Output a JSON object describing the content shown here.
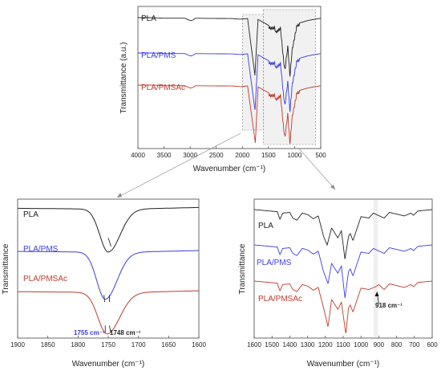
{
  "figure": {
    "colors": {
      "PLA": "#222222",
      "PLA/PMS": "#3b3be8",
      "PLA/PMSAc": "#c0392b"
    },
    "annotations": {
      "a1755": "1755 cm⁻¹",
      "a1748": "1748 cm⁻¹",
      "a918": "918 cm⁻¹"
    }
  },
  "chart_data": [
    {
      "type": "line",
      "xlabel": "Wavenumber (cm⁻¹)",
      "ylabel": "Transmittance (a.u.)",
      "xlim": [
        4000,
        500
      ],
      "x_reversed": true,
      "xticks": [
        4000,
        3500,
        3000,
        2500,
        2000,
        1500,
        1000,
        500
      ],
      "series": [
        {
          "name": "PLA",
          "offset": 0.72,
          "points": [
            [
              4000,
              1
            ],
            [
              3700,
              1
            ],
            [
              3600,
              0.995
            ],
            [
              3500,
              0.99
            ],
            [
              3100,
              0.99
            ],
            [
              2997,
              0.95
            ],
            [
              2945,
              0.96
            ],
            [
              2900,
              0.99
            ],
            [
              2200,
              0.985
            ],
            [
              2050,
              0.975
            ],
            [
              1900,
              0.985
            ],
            [
              1760,
              0.03
            ],
            [
              1700,
              0.97
            ],
            [
              1455,
              0.85
            ],
            [
              1380,
              0.86
            ],
            [
              1360,
              0.78
            ],
            [
              1270,
              0.85
            ],
            [
              1210,
              0.3
            ],
            [
              1185,
              0.15
            ],
            [
              1130,
              0.55
            ],
            [
              1090,
              0.05
            ],
            [
              1045,
              0.5
            ],
            [
              955,
              0.9
            ],
            [
              870,
              0.92
            ],
            [
              755,
              0.95
            ],
            [
              700,
              0.96
            ],
            [
              500,
              0.99
            ]
          ]
        },
        {
          "name": "PLA/PMS",
          "offset": 0.36,
          "points": [
            [
              4000,
              1
            ],
            [
              3700,
              1
            ],
            [
              3600,
              0.995
            ],
            [
              3500,
              0.99
            ],
            [
              3100,
              0.99
            ],
            [
              2997,
              0.95
            ],
            [
              2945,
              0.96
            ],
            [
              2900,
              0.99
            ],
            [
              2200,
              0.985
            ],
            [
              2050,
              0.975
            ],
            [
              1900,
              0.985
            ],
            [
              1758,
              0.03
            ],
            [
              1700,
              0.97
            ],
            [
              1455,
              0.85
            ],
            [
              1380,
              0.86
            ],
            [
              1360,
              0.78
            ],
            [
              1270,
              0.85
            ],
            [
              1210,
              0.3
            ],
            [
              1185,
              0.15
            ],
            [
              1130,
              0.55
            ],
            [
              1090,
              0.05
            ],
            [
              1045,
              0.5
            ],
            [
              955,
              0.9
            ],
            [
              870,
              0.92
            ],
            [
              755,
              0.95
            ],
            [
              700,
              0.96
            ],
            [
              500,
              0.99
            ]
          ]
        },
        {
          "name": "PLA/PMSAc",
          "offset": 0.0,
          "points": [
            [
              4000,
              1
            ],
            [
              3700,
              1
            ],
            [
              3600,
              0.995
            ],
            [
              3500,
              0.99
            ],
            [
              3100,
              0.99
            ],
            [
              2997,
              0.95
            ],
            [
              2945,
              0.96
            ],
            [
              2900,
              0.99
            ],
            [
              2200,
              0.985
            ],
            [
              2050,
              0.975
            ],
            [
              1900,
              0.985
            ],
            [
              1752,
              0.03
            ],
            [
              1700,
              0.97
            ],
            [
              1455,
              0.85
            ],
            [
              1380,
              0.86
            ],
            [
              1360,
              0.78
            ],
            [
              1270,
              0.85
            ],
            [
              1210,
              0.3
            ],
            [
              1185,
              0.15
            ],
            [
              1130,
              0.55
            ],
            [
              1090,
              0.05
            ],
            [
              1045,
              0.5
            ],
            [
              955,
              0.9
            ],
            [
              870,
              0.92
            ],
            [
              755,
              0.95
            ],
            [
              700,
              0.96
            ],
            [
              500,
              0.99
            ]
          ]
        }
      ],
      "highlight_regions": [
        [
          2000,
          1600
        ],
        [
          1600,
          600
        ]
      ]
    },
    {
      "type": "line",
      "xlabel": "Wavenumber (cm⁻¹)",
      "ylabel": "Transmittance",
      "xlim": [
        1900,
        1600
      ],
      "x_reversed": true,
      "xticks": [
        1900,
        1850,
        1800,
        1750,
        1700,
        1650,
        1600
      ],
      "series": [
        {
          "name": "PLA",
          "center": 1750,
          "width": 14,
          "base": 0.93,
          "depth": 0.31
        },
        {
          "name": "PLA/PMS",
          "center": 1755,
          "width": 14,
          "base": 0.62,
          "depth": 0.34
        },
        {
          "name": "PLA/PMSAc",
          "center": 1752,
          "width": 15,
          "base": 0.33,
          "depth": 0.3
        }
      ],
      "annotations": [
        {
          "text": "1755 cm⁻¹",
          "x": 1755
        },
        {
          "text": "1748 cm⁻¹",
          "x": 1748
        }
      ]
    },
    {
      "type": "line",
      "xlabel": "Wavenumber (cm⁻¹)",
      "ylabel": "Transmittance",
      "xlim": [
        1600,
        600
      ],
      "x_reversed": true,
      "xticks": [
        1600,
        1500,
        1400,
        1300,
        1200,
        1100,
        1000,
        900,
        800,
        700,
        600
      ],
      "series": [
        {
          "name": "PLA",
          "offset": 0.66,
          "points": [
            [
              1600,
              1
            ],
            [
              1470,
              0.97
            ],
            [
              1455,
              0.86
            ],
            [
              1440,
              0.95
            ],
            [
              1400,
              0.96
            ],
            [
              1383,
              0.88
            ],
            [
              1360,
              0.85
            ],
            [
              1330,
              0.95
            ],
            [
              1300,
              0.93
            ],
            [
              1268,
              0.87
            ],
            [
              1240,
              0.91
            ],
            [
              1210,
              0.62
            ],
            [
              1190,
              0.5
            ],
            [
              1165,
              0.74
            ],
            [
              1130,
              0.6
            ],
            [
              1110,
              0.7
            ],
            [
              1090,
              0.3
            ],
            [
              1070,
              0.62
            ],
            [
              1060,
              0.66
            ],
            [
              1045,
              0.56
            ],
            [
              1000,
              0.9
            ],
            [
              956,
              0.88
            ],
            [
              930,
              0.95
            ],
            [
              870,
              0.88
            ],
            [
              840,
              0.96
            ],
            [
              756,
              0.91
            ],
            [
              720,
              0.95
            ],
            [
              705,
              0.92
            ],
            [
              680,
              0.98
            ],
            [
              600,
              1
            ]
          ]
        },
        {
          "name": "PLA/PMS",
          "offset": 0.35,
          "points": [
            [
              1600,
              1
            ],
            [
              1470,
              0.97
            ],
            [
              1455,
              0.86
            ],
            [
              1440,
              0.95
            ],
            [
              1400,
              0.96
            ],
            [
              1383,
              0.88
            ],
            [
              1360,
              0.85
            ],
            [
              1330,
              0.95
            ],
            [
              1300,
              0.93
            ],
            [
              1268,
              0.87
            ],
            [
              1240,
              0.91
            ],
            [
              1210,
              0.62
            ],
            [
              1185,
              0.45
            ],
            [
              1165,
              0.74
            ],
            [
              1130,
              0.6
            ],
            [
              1110,
              0.7
            ],
            [
              1090,
              0.25
            ],
            [
              1070,
              0.62
            ],
            [
              1060,
              0.66
            ],
            [
              1045,
              0.56
            ],
            [
              1000,
              0.9
            ],
            [
              956,
              0.88
            ],
            [
              930,
              0.95
            ],
            [
              870,
              0.88
            ],
            [
              840,
              0.96
            ],
            [
              756,
              0.91
            ],
            [
              720,
              0.95
            ],
            [
              705,
              0.92
            ],
            [
              680,
              0.98
            ],
            [
              600,
              1
            ]
          ]
        },
        {
          "name": "PLA/PMSAc",
          "offset": 0.0,
          "points": [
            [
              1600,
              1
            ],
            [
              1470,
              0.97
            ],
            [
              1455,
              0.86
            ],
            [
              1440,
              0.95
            ],
            [
              1400,
              0.96
            ],
            [
              1383,
              0.88
            ],
            [
              1360,
              0.85
            ],
            [
              1330,
              0.95
            ],
            [
              1300,
              0.93
            ],
            [
              1268,
              0.87
            ],
            [
              1240,
              0.91
            ],
            [
              1210,
              0.62
            ],
            [
              1185,
              0.35
            ],
            [
              1165,
              0.74
            ],
            [
              1130,
              0.6
            ],
            [
              1110,
              0.7
            ],
            [
              1085,
              0.25
            ],
            [
              1070,
              0.62
            ],
            [
              1060,
              0.66
            ],
            [
              1045,
              0.56
            ],
            [
              1000,
              0.9
            ],
            [
              956,
              0.88
            ],
            [
              918,
              0.92
            ],
            [
              900,
              0.95
            ],
            [
              870,
              0.88
            ],
            [
              840,
              0.96
            ],
            [
              756,
              0.91
            ],
            [
              720,
              0.95
            ],
            [
              705,
              0.92
            ],
            [
              680,
              0.98
            ],
            [
              600,
              1
            ]
          ]
        }
      ],
      "highlight_band": [
        930,
        905
      ],
      "annotations": [
        {
          "text": "918 cm⁻¹",
          "x": 918
        }
      ]
    }
  ]
}
